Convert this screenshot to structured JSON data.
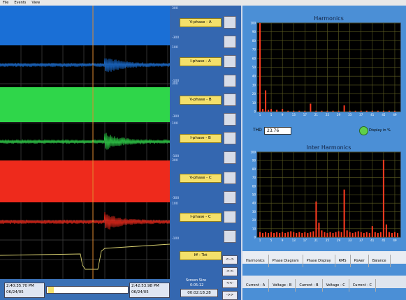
{
  "menu": [
    "File",
    "Events",
    "View"
  ],
  "scale_labels": [
    "300",
    "-300",
    "100",
    "-100",
    "300",
    "-300",
    "100",
    "-100",
    "300",
    "-300",
    "100",
    "-100"
  ],
  "times": {
    "start_time": "2:40:35.70 PM",
    "start_date": "06/24/05",
    "end_time": "2:42:53.98 PM",
    "end_date": "06/24/05"
  },
  "channels": [
    "V-phase - A",
    "I-phase - A",
    "V-phase - B",
    "I-phase - B",
    "V-phase - C",
    "I-phase - C",
    "Iff - Tot"
  ],
  "controls": {
    "screen_size_label": "Screen Size",
    "screen_size": "0:05:12",
    "position": "00:02:18.28",
    "nav": [
      "<-->",
      "-><-",
      "<<-",
      "->>"
    ]
  },
  "chart_data": [
    {
      "type": "bar",
      "title": "Harmonics",
      "color": "#ff3b1f",
      "x": [
        1,
        2,
        3,
        4,
        5,
        7,
        9,
        11,
        13,
        15,
        17,
        19,
        21,
        23,
        25,
        27,
        29,
        31,
        33,
        35,
        37,
        39,
        41,
        43,
        45,
        47,
        49
      ],
      "values": [
        100,
        3,
        24,
        2,
        3,
        2,
        3,
        1,
        1,
        1,
        1,
        9,
        1,
        1,
        1,
        1,
        1,
        7,
        1,
        1,
        1,
        1,
        1,
        1,
        1,
        1,
        1
      ],
      "xlim": [
        0,
        51
      ],
      "ylim": [
        0,
        100
      ],
      "xticks": [
        1,
        5,
        9,
        13,
        17,
        21,
        25,
        29,
        33,
        37,
        41,
        45,
        49
      ],
      "yticks": [
        0,
        10,
        20,
        30,
        40,
        50,
        60,
        70,
        80,
        90,
        100
      ],
      "grid": true
    },
    {
      "type": "bar",
      "title": "Inter Harmonics",
      "color": "#ff3b1f",
      "x": [
        1,
        2,
        3,
        4,
        5,
        6,
        7,
        8,
        9,
        10,
        11,
        12,
        13,
        14,
        15,
        16,
        17,
        18,
        19,
        20,
        21,
        22,
        23,
        24,
        25,
        26,
        27,
        28,
        29,
        30,
        31,
        32,
        33,
        34,
        35,
        36,
        37,
        38,
        39,
        40,
        41,
        42,
        43,
        44,
        45,
        46,
        47,
        48,
        49,
        50
      ],
      "values": [
        6,
        5,
        6,
        5,
        6,
        5,
        6,
        5,
        6,
        5,
        6,
        7,
        6,
        5,
        6,
        5,
        6,
        5,
        6,
        7,
        42,
        17,
        8,
        6,
        5,
        6,
        5,
        6,
        7,
        6,
        56,
        8,
        6,
        5,
        6,
        7,
        6,
        5,
        6,
        5,
        13,
        6,
        5,
        6,
        91,
        15,
        6,
        5,
        6,
        5
      ],
      "xlim": [
        0,
        51
      ],
      "ylim": [
        0,
        100
      ],
      "xticks": [
        1,
        5,
        9,
        13,
        17,
        21,
        25,
        29,
        33,
        37,
        41,
        45,
        49
      ],
      "yticks": [
        0,
        10,
        20,
        30,
        40,
        50,
        60,
        70,
        80,
        90,
        100
      ],
      "grid": true
    }
  ],
  "thd": {
    "label": "THD",
    "value": 23.76,
    "display_label": "Display in %"
  },
  "tabs": [
    "Harmonics",
    "Phase Diagram",
    "Phase Display",
    "RMS",
    "Power",
    "Balance"
  ],
  "sub_tabs": [
    "Current - A",
    "Voltage - B",
    "Current - B",
    "Voltage - C",
    "Current - C"
  ]
}
